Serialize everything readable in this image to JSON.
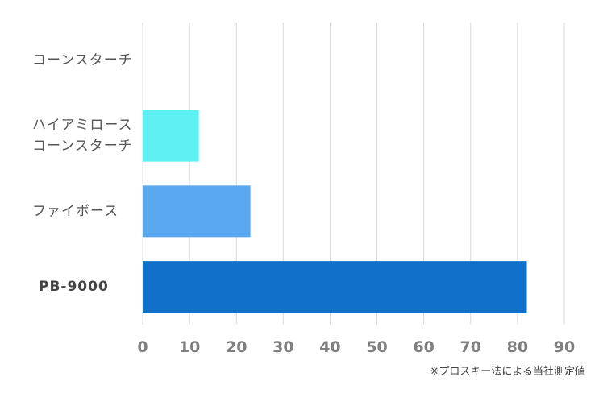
{
  "chart_data": {
    "type": "bar",
    "orientation": "horizontal",
    "categories": [
      [
        "コーンスターチ"
      ],
      [
        "ハイアミロース",
        "コーンスターチ"
      ],
      [
        "ファイボース"
      ],
      [
        "PB-9000"
      ]
    ],
    "values": [
      0,
      12,
      23,
      82
    ],
    "colors": [
      "#5ff0f4",
      "#5ff0f4",
      "#5aa8ef",
      "#1170c8"
    ],
    "highlight_category_index": 3,
    "xlim": [
      0,
      90
    ],
    "xticks": [
      0,
      10,
      20,
      30,
      40,
      50,
      60,
      70,
      80,
      90
    ],
    "grid": true,
    "gridline_color": "#d9d9d9",
    "title": "",
    "xlabel": "",
    "ylabel": ""
  },
  "footnote": "※プロスキー法による当社測定値"
}
